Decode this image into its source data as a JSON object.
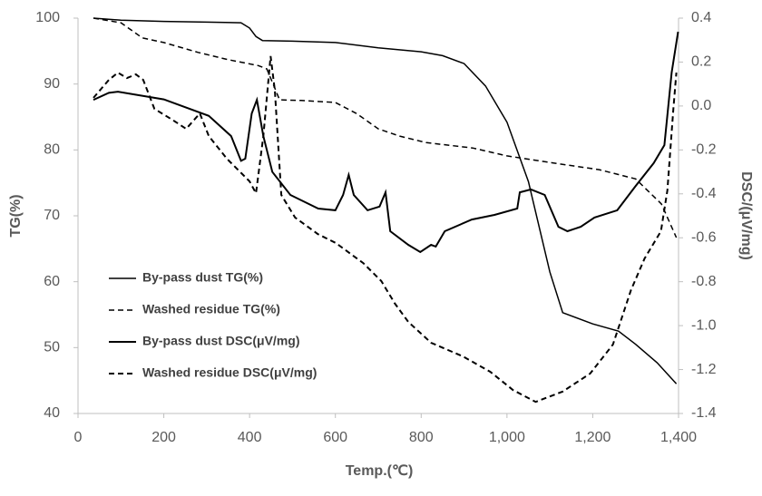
{
  "chart_data": {
    "type": "line",
    "x_label": "Temp.(℃)",
    "y_label": "TG(%)",
    "y2_label": "DSC/(μV/mg)",
    "xlim": [
      0,
      1400
    ],
    "xticks": [
      0,
      200,
      400,
      600,
      800,
      {
        "value": 1000,
        "label": "1,000"
      },
      {
        "value": 1200,
        "label": "1,200"
      },
      {
        "value": 1400,
        "label": "1,400"
      }
    ],
    "ylim": [
      40,
      100
    ],
    "yticks": [
      40,
      50,
      60,
      70,
      80,
      90,
      100
    ],
    "y2lim": [
      -1.4,
      0.4
    ],
    "y2ticks": [
      -1.4,
      -1.2,
      {
        "value": -1,
        "label": "-1.0"
      },
      -0.8,
      -0.6,
      -0.4,
      -0.2,
      {
        "value": 0,
        "label": "0.0"
      },
      0.2,
      0.4
    ],
    "grid": false,
    "legend": "lower-left",
    "series": [
      {
        "name": "By-pass dust TG(%)",
        "color": "#000000",
        "line_style": "solid",
        "line_width": 1.5,
        "x": [
          36,
          100,
          200,
          300,
          380,
          400,
          415,
          430,
          500,
          600,
          700,
          800,
          850,
          900,
          950,
          1000,
          1050,
          1100,
          1130,
          1200,
          1260,
          1300,
          1350,
          1395
        ],
        "values": [
          100,
          99.7,
          99.5,
          99.4,
          99.3,
          98.5,
          97.2,
          96.6,
          96.5,
          96.3,
          95.5,
          94.9,
          94.3,
          93.1,
          89.7,
          84.2,
          75.2,
          61.5,
          55.3,
          53.6,
          52.5,
          50.5,
          47.7,
          44.5
        ]
      },
      {
        "name": "Washed residue TG(%)",
        "color": "#000000",
        "line_style": "dashed",
        "line_width": 1.5,
        "x": [
          36,
          100,
          150,
          200,
          280,
          350,
          420,
          440,
          455,
          470,
          520,
          600,
          650,
          700,
          750,
          812,
          920,
          1000,
          1110,
          1215,
          1300,
          1360,
          1395
        ],
        "values": [
          100,
          99.3,
          97,
          96.3,
          94.8,
          93.7,
          92.8,
          92.3,
          90,
          87.6,
          87.5,
          87.2,
          85.5,
          83.2,
          82.1,
          81.1,
          80.3,
          79.1,
          78,
          77,
          75.6,
          71.8,
          66.7
        ]
      },
      {
        "name": "By-pass dust DSC(μV/mg)",
        "color": "#000000",
        "line_style": "solid",
        "line_width": 2,
        "axis": "y2",
        "x": [
          36,
          72,
          93,
          200,
          305,
          357,
          380,
          390,
          405,
          417,
          432,
          453,
          495,
          560,
          600,
          618,
          631,
          643,
          675,
          703,
          717,
          728,
          770,
          798,
          823,
          834,
          855,
          918,
          971,
          1024,
          1030,
          1056,
          1088,
          1120,
          1141,
          1172,
          1204,
          1257,
          1300,
          1342,
          1367,
          1384,
          1399
        ],
        "values": [
          0.028,
          0.06,
          0.065,
          0.03,
          -0.045,
          -0.137,
          -0.25,
          -0.24,
          -0.034,
          0.028,
          -0.137,
          -0.3,
          -0.405,
          -0.467,
          -0.475,
          -0.405,
          -0.314,
          -0.405,
          -0.475,
          -0.458,
          -0.393,
          -0.57,
          -0.632,
          -0.665,
          -0.632,
          -0.64,
          -0.57,
          -0.517,
          -0.496,
          -0.467,
          -0.393,
          -0.38,
          -0.405,
          -0.55,
          -0.57,
          -0.55,
          -0.508,
          -0.475,
          -0.364,
          -0.26,
          -0.178,
          0.152,
          0.338
        ]
      },
      {
        "name": "Washed residue DSC(μV/mg)",
        "color": "#000000",
        "line_style": "dashed",
        "line_width": 2,
        "axis": "y2",
        "x": [
          36,
          72,
          93,
          114,
          135,
          152,
          178,
          220,
          252,
          284,
          305,
          347,
          400,
          415,
          432,
          449,
          459,
          474,
          506,
          559,
          601,
          665,
          707,
          739,
          770,
          823,
          897,
          961,
          1014,
          1067,
          1130,
          1194,
          1247,
          1289,
          1321,
          1359,
          1374,
          1388,
          1395
        ],
        "values": [
          0.037,
          0.119,
          0.152,
          0.127,
          0.144,
          0.119,
          -0.013,
          -0.063,
          -0.104,
          -0.034,
          -0.137,
          -0.24,
          -0.343,
          -0.397,
          -0.137,
          0.227,
          0.07,
          -0.405,
          -0.508,
          -0.583,
          -0.624,
          -0.715,
          -0.797,
          -0.9,
          -0.983,
          -1.078,
          -1.14,
          -1.21,
          -1.293,
          -1.347,
          -1.3,
          -1.218,
          -1.086,
          -0.839,
          -0.694,
          -0.57,
          -0.384,
          -0.013,
          0.152
        ]
      }
    ]
  }
}
